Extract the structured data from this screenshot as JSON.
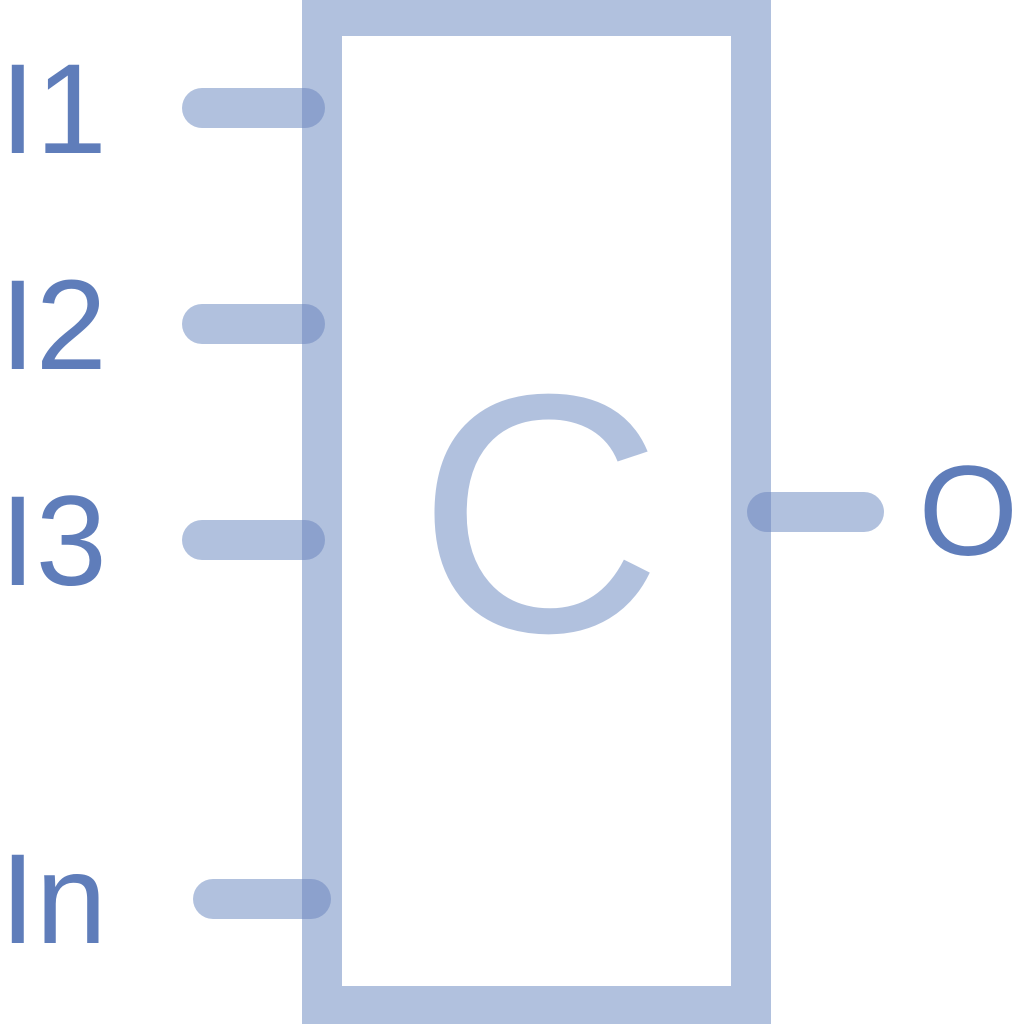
{
  "diagram": {
    "block": {
      "symbol": "C"
    },
    "inputs": [
      {
        "label": "I1"
      },
      {
        "label": "I2"
      },
      {
        "label": "I3"
      },
      {
        "label": "In"
      }
    ],
    "output": {
      "label": "O"
    },
    "colors": {
      "body": "#b1c1de",
      "lead": "#b1c1de",
      "label": "#5f7dba",
      "overlap": "#8ca1cd"
    }
  }
}
